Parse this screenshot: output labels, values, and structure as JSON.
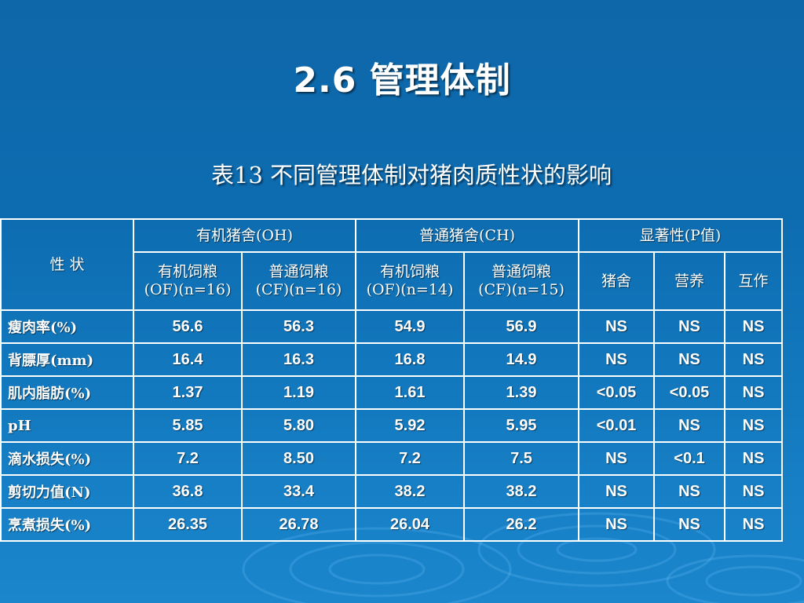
{
  "slide": {
    "title": "2.6 管理体制",
    "caption": "表13  不同管理体制对猪肉质性状的影响"
  },
  "table": {
    "trait_header": "性 状",
    "groups": {
      "oh": "有机猪舍(OH)",
      "ch": "普通猪舍(CH)",
      "p": "显著性(P值)"
    },
    "subheaders": {
      "oh_of": [
        "有机饲粮",
        "(OF)(n=16)"
      ],
      "oh_cf": [
        "普通饲粮",
        "(CF)(n=16)"
      ],
      "ch_of": [
        "有机饲粮",
        "(OF)(n=14)"
      ],
      "ch_cf": [
        "普通饲粮",
        "(CF)(n=15)"
      ],
      "housing": "猪舍",
      "diet": "营养",
      "interaction": "互作"
    },
    "rows": [
      {
        "trait": "瘦肉率(%)",
        "oh_of": "56.6",
        "oh_cf": "56.3",
        "ch_of": "54.9",
        "ch_cf": "56.9",
        "housing": "NS",
        "diet": "NS",
        "interaction": "NS"
      },
      {
        "trait": "背膘厚(mm)",
        "oh_of": "16.4",
        "oh_cf": "16.3",
        "ch_of": "16.8",
        "ch_cf": "14.9",
        "housing": "NS",
        "diet": "NS",
        "interaction": "NS"
      },
      {
        "trait": "肌内脂肪(%)",
        "oh_of": "1.37",
        "oh_cf": "1.19",
        "ch_of": "1.61",
        "ch_cf": "1.39",
        "housing": "<0.05",
        "diet": "<0.05",
        "interaction": "NS"
      },
      {
        "trait": "pH",
        "oh_of": "5.85",
        "oh_cf": "5.80",
        "ch_of": "5.92",
        "ch_cf": "5.95",
        "housing": "<0.01",
        "diet": "NS",
        "interaction": "NS"
      },
      {
        "trait": "滴水损失(%)",
        "oh_of": "7.2",
        "oh_cf": "8.50",
        "ch_of": "7.2",
        "ch_cf": "7.5",
        "housing": "NS",
        "diet": "<0.1",
        "interaction": "NS"
      },
      {
        "trait": "剪切力值(N)",
        "oh_of": "36.8",
        "oh_cf": "33.4",
        "ch_of": "38.2",
        "ch_cf": "38.2",
        "housing": "NS",
        "diet": "NS",
        "interaction": "NS"
      },
      {
        "trait": "烹煮损失(%)",
        "oh_of": "26.35",
        "oh_cf": "26.78",
        "ch_of": "26.04",
        "ch_cf": "26.2",
        "housing": "NS",
        "diet": "NS",
        "interaction": "NS"
      }
    ]
  },
  "colors": {
    "background_top": "#0e67a9",
    "background_bottom": "#1b86cc",
    "text": "#ffffff",
    "border": "#ffffff"
  }
}
